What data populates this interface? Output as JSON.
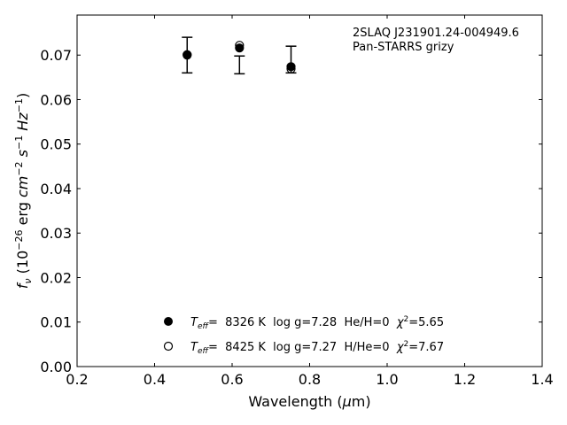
{
  "chart_data": {
    "type": "scatter",
    "title": "",
    "xlabel": "Wavelength (μm)",
    "ylabel": "fν (10⁻²⁶ erg cm⁻² s⁻¹ Hz⁻¹)",
    "xlim": [
      0.2,
      1.4
    ],
    "ylim": [
      0.0,
      0.079
    ],
    "x_ticks": [
      "0.2",
      "0.4",
      "0.6",
      "0.8",
      "1.0",
      "1.2",
      "1.4"
    ],
    "y_ticks": [
      "0.00",
      "0.01",
      "0.02",
      "0.03",
      "0.04",
      "0.05",
      "0.06",
      "0.07"
    ],
    "grid": false,
    "legend_position": "bottom-center",
    "annotation": {
      "line1": "2SLAQ J231901.24-004949.6",
      "line2": "Pan-STARRS grizy"
    },
    "observed": {
      "x": [
        0.484,
        0.619,
        0.752
      ],
      "y": [
        0.07,
        0.0678,
        0.069
      ],
      "yerr": [
        0.004,
        0.002,
        0.003
      ]
    },
    "series": [
      {
        "name": "Teff= 8326 K log g=7.28 He/H=0 χ²=5.65",
        "marker": "filled-circle",
        "x": [
          0.484,
          0.619,
          0.752
        ],
        "y": [
          0.0701,
          0.0716,
          0.0674
        ],
        "legend": {
          "teff_label": "T",
          "teff_sub": "eff",
          "text": "=  8326 K  log g=7.28  He/H=0  ",
          "chi_label": "χ",
          "chi_sup": "2",
          "chi_value": "=5.65"
        }
      },
      {
        "name": "Teff= 8425 K log g=7.27 H/He=0 χ²=7.67",
        "marker": "open-circle",
        "x": [
          0.484,
          0.619,
          0.752
        ],
        "y": [
          0.07,
          0.0722,
          0.0669
        ],
        "legend": {
          "teff_label": "T",
          "teff_sub": "eff",
          "text": "=  8425 K  log g=7.27  H/He=0  ",
          "chi_label": "χ",
          "chi_sup": "2",
          "chi_value": "=7.67"
        }
      }
    ]
  }
}
